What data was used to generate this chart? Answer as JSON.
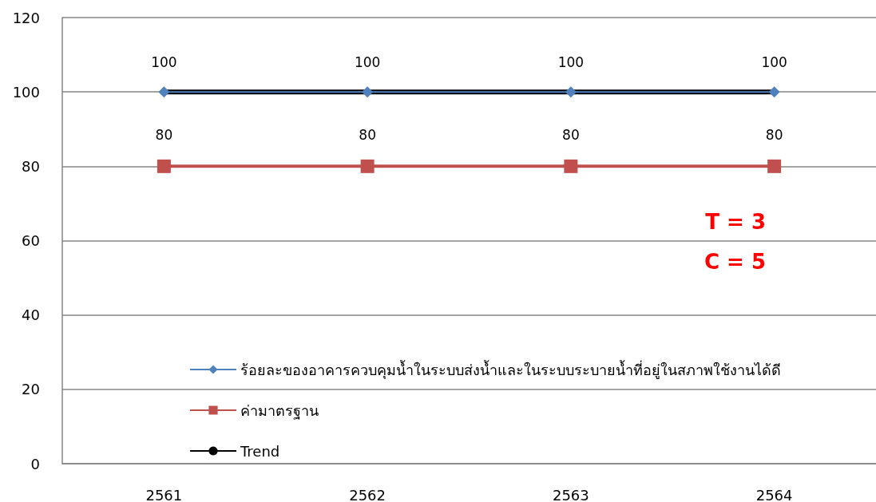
{
  "chart_data": {
    "type": "line",
    "categories": [
      "2561",
      "2562",
      "2563",
      "2564"
    ],
    "series": [
      {
        "name": "ร้อยละของอาคารควบคุมน้ำในระบบส่งน้ำและในระบบระบายน้ำที่อยู่ในสภาพใช้งานได้ดี",
        "color": "#4f81bd",
        "marker": "diamond",
        "values": [
          100,
          100,
          100,
          100
        ],
        "value_labels": [
          "100",
          "100",
          "100",
          "100"
        ]
      },
      {
        "name": "ค่ามาตรฐาน",
        "color": "#c0504d",
        "marker": "square",
        "values": [
          80,
          80,
          80,
          80
        ],
        "value_labels": [
          "80",
          "80",
          "80",
          "80"
        ]
      },
      {
        "name": "Trend",
        "color": "#000000",
        "marker": "none",
        "values": [
          100,
          100,
          100,
          100
        ]
      }
    ],
    "ylim": [
      0,
      120
    ],
    "yticks": [
      0,
      20,
      40,
      60,
      80,
      100,
      120
    ],
    "grid": "y",
    "legend": "bottom left",
    "annotations": [
      "T = 3",
      "C = 5"
    ]
  }
}
